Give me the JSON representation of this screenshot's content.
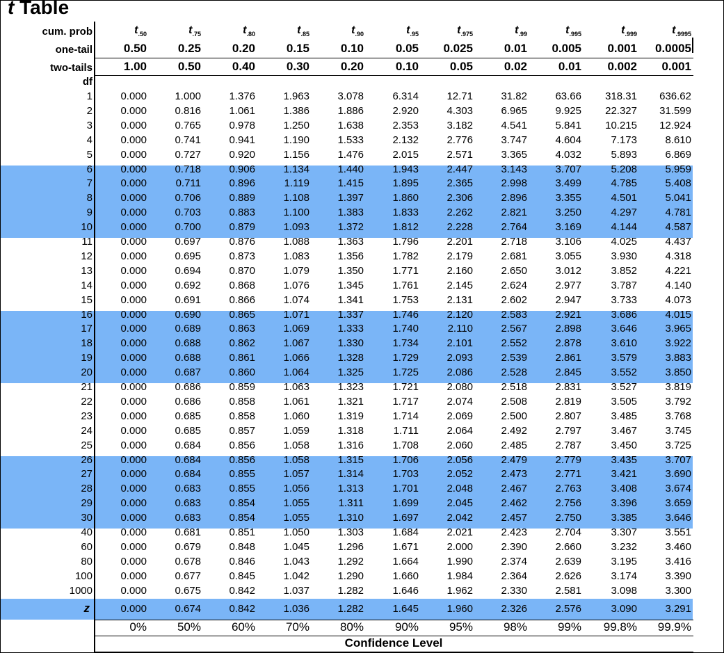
{
  "title": {
    "t": "t",
    "word": "Table"
  },
  "header": {
    "cum_prob_label": "cum. prob",
    "one_tail_label": "one-tail",
    "two_tails_label": "two-tails",
    "df_label": "df",
    "t_subscripts": [
      ".50",
      ".75",
      ".80",
      ".85",
      ".90",
      ".95",
      ".975",
      ".99",
      ".995",
      ".999",
      ".9995"
    ],
    "one_tail": [
      "0.50",
      "0.25",
      "0.20",
      "0.15",
      "0.10",
      "0.05",
      "0.025",
      "0.01",
      "0.005",
      "0.001",
      "0.0005"
    ],
    "two_tails": [
      "1.00",
      "0.50",
      "0.40",
      "0.30",
      "0.20",
      "0.10",
      "0.05",
      "0.02",
      "0.01",
      "0.002",
      "0.001"
    ]
  },
  "rows": [
    {
      "df": "1",
      "v": [
        "0.000",
        "1.000",
        "1.376",
        "1.963",
        "3.078",
        "6.314",
        "12.71",
        "31.82",
        "63.66",
        "318.31",
        "636.62"
      ]
    },
    {
      "df": "2",
      "v": [
        "0.000",
        "0.816",
        "1.061",
        "1.386",
        "1.886",
        "2.920",
        "4.303",
        "6.965",
        "9.925",
        "22.327",
        "31.599"
      ]
    },
    {
      "df": "3",
      "v": [
        "0.000",
        "0.765",
        "0.978",
        "1.250",
        "1.638",
        "2.353",
        "3.182",
        "4.541",
        "5.841",
        "10.215",
        "12.924"
      ]
    },
    {
      "df": "4",
      "v": [
        "0.000",
        "0.741",
        "0.941",
        "1.190",
        "1.533",
        "2.132",
        "2.776",
        "3.747",
        "4.604",
        "7.173",
        "8.610"
      ]
    },
    {
      "df": "5",
      "v": [
        "0.000",
        "0.727",
        "0.920",
        "1.156",
        "1.476",
        "2.015",
        "2.571",
        "3.365",
        "4.032",
        "5.893",
        "6.869"
      ]
    },
    {
      "df": "6",
      "v": [
        "0.000",
        "0.718",
        "0.906",
        "1.134",
        "1.440",
        "1.943",
        "2.447",
        "3.143",
        "3.707",
        "5.208",
        "5.959"
      ]
    },
    {
      "df": "7",
      "v": [
        "0.000",
        "0.711",
        "0.896",
        "1.119",
        "1.415",
        "1.895",
        "2.365",
        "2.998",
        "3.499",
        "4.785",
        "5.408"
      ]
    },
    {
      "df": "8",
      "v": [
        "0.000",
        "0.706",
        "0.889",
        "1.108",
        "1.397",
        "1.860",
        "2.306",
        "2.896",
        "3.355",
        "4.501",
        "5.041"
      ]
    },
    {
      "df": "9",
      "v": [
        "0.000",
        "0.703",
        "0.883",
        "1.100",
        "1.383",
        "1.833",
        "2.262",
        "2.821",
        "3.250",
        "4.297",
        "4.781"
      ]
    },
    {
      "df": "10",
      "v": [
        "0.000",
        "0.700",
        "0.879",
        "1.093",
        "1.372",
        "1.812",
        "2.228",
        "2.764",
        "3.169",
        "4.144",
        "4.587"
      ]
    },
    {
      "df": "11",
      "v": [
        "0.000",
        "0.697",
        "0.876",
        "1.088",
        "1.363",
        "1.796",
        "2.201",
        "2.718",
        "3.106",
        "4.025",
        "4.437"
      ]
    },
    {
      "df": "12",
      "v": [
        "0.000",
        "0.695",
        "0.873",
        "1.083",
        "1.356",
        "1.782",
        "2.179",
        "2.681",
        "3.055",
        "3.930",
        "4.318"
      ]
    },
    {
      "df": "13",
      "v": [
        "0.000",
        "0.694",
        "0.870",
        "1.079",
        "1.350",
        "1.771",
        "2.160",
        "2.650",
        "3.012",
        "3.852",
        "4.221"
      ]
    },
    {
      "df": "14",
      "v": [
        "0.000",
        "0.692",
        "0.868",
        "1.076",
        "1.345",
        "1.761",
        "2.145",
        "2.624",
        "2.977",
        "3.787",
        "4.140"
      ]
    },
    {
      "df": "15",
      "v": [
        "0.000",
        "0.691",
        "0.866",
        "1.074",
        "1.341",
        "1.753",
        "2.131",
        "2.602",
        "2.947",
        "3.733",
        "4.073"
      ]
    },
    {
      "df": "16",
      "v": [
        "0.000",
        "0.690",
        "0.865",
        "1.071",
        "1.337",
        "1.746",
        "2.120",
        "2.583",
        "2.921",
        "3.686",
        "4.015"
      ]
    },
    {
      "df": "17",
      "v": [
        "0.000",
        "0.689",
        "0.863",
        "1.069",
        "1.333",
        "1.740",
        "2.110",
        "2.567",
        "2.898",
        "3.646",
        "3.965"
      ]
    },
    {
      "df": "18",
      "v": [
        "0.000",
        "0.688",
        "0.862",
        "1.067",
        "1.330",
        "1.734",
        "2.101",
        "2.552",
        "2.878",
        "3.610",
        "3.922"
      ]
    },
    {
      "df": "19",
      "v": [
        "0.000",
        "0.688",
        "0.861",
        "1.066",
        "1.328",
        "1.729",
        "2.093",
        "2.539",
        "2.861",
        "3.579",
        "3.883"
      ]
    },
    {
      "df": "20",
      "v": [
        "0.000",
        "0.687",
        "0.860",
        "1.064",
        "1.325",
        "1.725",
        "2.086",
        "2.528",
        "2.845",
        "3.552",
        "3.850"
      ]
    },
    {
      "df": "21",
      "v": [
        "0.000",
        "0.686",
        "0.859",
        "1.063",
        "1.323",
        "1.721",
        "2.080",
        "2.518",
        "2.831",
        "3.527",
        "3.819"
      ]
    },
    {
      "df": "22",
      "v": [
        "0.000",
        "0.686",
        "0.858",
        "1.061",
        "1.321",
        "1.717",
        "2.074",
        "2.508",
        "2.819",
        "3.505",
        "3.792"
      ]
    },
    {
      "df": "23",
      "v": [
        "0.000",
        "0.685",
        "0.858",
        "1.060",
        "1.319",
        "1.714",
        "2.069",
        "2.500",
        "2.807",
        "3.485",
        "3.768"
      ]
    },
    {
      "df": "24",
      "v": [
        "0.000",
        "0.685",
        "0.857",
        "1.059",
        "1.318",
        "1.711",
        "2.064",
        "2.492",
        "2.797",
        "3.467",
        "3.745"
      ]
    },
    {
      "df": "25",
      "v": [
        "0.000",
        "0.684",
        "0.856",
        "1.058",
        "1.316",
        "1.708",
        "2.060",
        "2.485",
        "2.787",
        "3.450",
        "3.725"
      ]
    },
    {
      "df": "26",
      "v": [
        "0.000",
        "0.684",
        "0.856",
        "1.058",
        "1.315",
        "1.706",
        "2.056",
        "2.479",
        "2.779",
        "3.435",
        "3.707"
      ]
    },
    {
      "df": "27",
      "v": [
        "0.000",
        "0.684",
        "0.855",
        "1.057",
        "1.314",
        "1.703",
        "2.052",
        "2.473",
        "2.771",
        "3.421",
        "3.690"
      ]
    },
    {
      "df": "28",
      "v": [
        "0.000",
        "0.683",
        "0.855",
        "1.056",
        "1.313",
        "1.701",
        "2.048",
        "2.467",
        "2.763",
        "3.408",
        "3.674"
      ]
    },
    {
      "df": "29",
      "v": [
        "0.000",
        "0.683",
        "0.854",
        "1.055",
        "1.311",
        "1.699",
        "2.045",
        "2.462",
        "2.756",
        "3.396",
        "3.659"
      ]
    },
    {
      "df": "30",
      "v": [
        "0.000",
        "0.683",
        "0.854",
        "1.055",
        "1.310",
        "1.697",
        "2.042",
        "2.457",
        "2.750",
        "3.385",
        "3.646"
      ]
    },
    {
      "df": "40",
      "v": [
        "0.000",
        "0.681",
        "0.851",
        "1.050",
        "1.303",
        "1.684",
        "2.021",
        "2.423",
        "2.704",
        "3.307",
        "3.551"
      ]
    },
    {
      "df": "60",
      "v": [
        "0.000",
        "0.679",
        "0.848",
        "1.045",
        "1.296",
        "1.671",
        "2.000",
        "2.390",
        "2.660",
        "3.232",
        "3.460"
      ]
    },
    {
      "df": "80",
      "v": [
        "0.000",
        "0.678",
        "0.846",
        "1.043",
        "1.292",
        "1.664",
        "1.990",
        "2.374",
        "2.639",
        "3.195",
        "3.416"
      ]
    },
    {
      "df": "100",
      "v": [
        "0.000",
        "0.677",
        "0.845",
        "1.042",
        "1.290",
        "1.660",
        "1.984",
        "2.364",
        "2.626",
        "3.174",
        "3.390"
      ]
    },
    {
      "df": "1000",
      "v": [
        "0.000",
        "0.675",
        "0.842",
        "1.037",
        "1.282",
        "1.646",
        "1.962",
        "2.330",
        "2.581",
        "3.098",
        "3.300"
      ]
    }
  ],
  "z_row": {
    "label": "z",
    "v": [
      "0.000",
      "0.674",
      "0.842",
      "1.036",
      "1.282",
      "1.645",
      "1.960",
      "2.326",
      "2.576",
      "3.090",
      "3.291"
    ]
  },
  "confidence": {
    "values": [
      "0%",
      "50%",
      "60%",
      "70%",
      "80%",
      "90%",
      "95%",
      "98%",
      "99%",
      "99.8%",
      "99.9%"
    ],
    "label": "Confidence Level"
  },
  "colors": {
    "band": "#7ab5f7"
  }
}
